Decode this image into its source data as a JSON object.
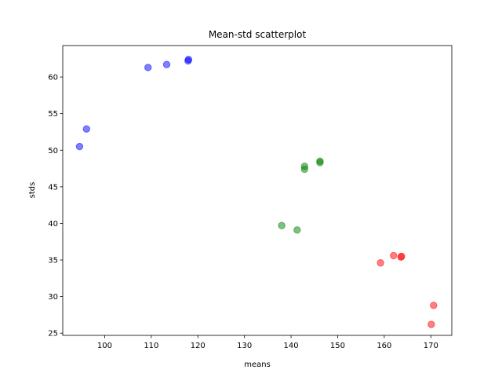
{
  "chart_data": {
    "type": "scatter",
    "title": "Mean-std scatterplot",
    "xlabel": "means",
    "ylabel": "stds",
    "xlim": [
      91,
      174.5
    ],
    "ylim": [
      24.7,
      64.3
    ],
    "xticks": [
      100,
      110,
      120,
      130,
      140,
      150,
      160,
      170
    ],
    "yticks": [
      25,
      30,
      35,
      40,
      45,
      50,
      55,
      60
    ],
    "grid": false,
    "series": [
      {
        "color": "#0000ff",
        "points": [
          {
            "x": 94.6,
            "y": 50.5
          },
          {
            "x": 96.1,
            "y": 52.9
          },
          {
            "x": 109.3,
            "y": 61.3
          },
          {
            "x": 113.3,
            "y": 61.7
          },
          {
            "x": 117.9,
            "y": 62.2
          },
          {
            "x": 118.0,
            "y": 62.4
          }
        ]
      },
      {
        "color": "#008000",
        "points": [
          {
            "x": 138.0,
            "y": 39.7
          },
          {
            "x": 141.3,
            "y": 39.1
          },
          {
            "x": 142.9,
            "y": 47.4
          },
          {
            "x": 142.9,
            "y": 47.8
          },
          {
            "x": 146.2,
            "y": 48.3
          },
          {
            "x": 146.2,
            "y": 48.5
          }
        ]
      },
      {
        "color": "#ff0000",
        "points": [
          {
            "x": 159.2,
            "y": 34.6
          },
          {
            "x": 162.0,
            "y": 35.6
          },
          {
            "x": 163.6,
            "y": 35.4
          },
          {
            "x": 163.7,
            "y": 35.5
          },
          {
            "x": 170.1,
            "y": 26.2
          },
          {
            "x": 170.6,
            "y": 28.8
          }
        ]
      }
    ]
  }
}
